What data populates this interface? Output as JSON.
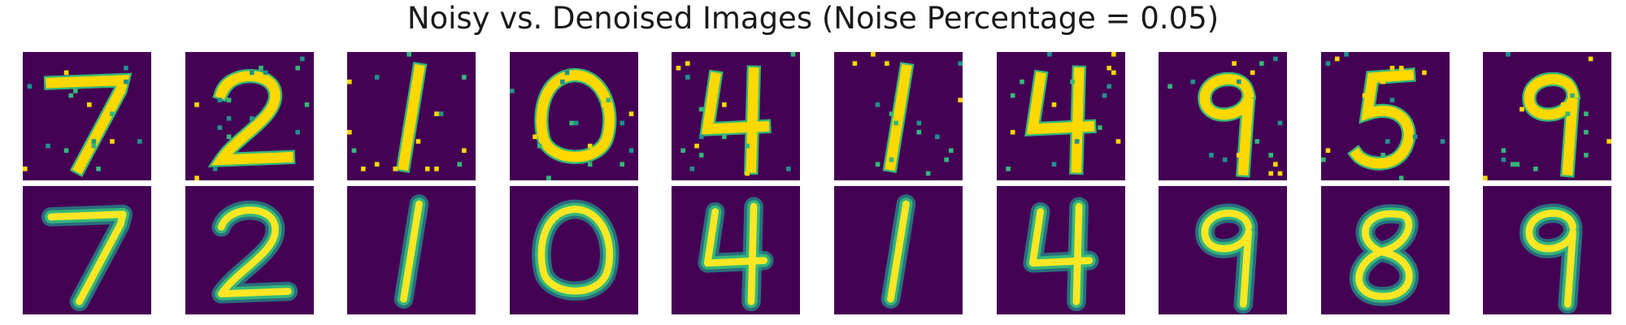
{
  "figure": {
    "title": "Noisy vs. Denoised Images (Noise Percentage = 0.05)",
    "colormap": {
      "background": "#440154",
      "mid": "#21918c",
      "teal": "#35b779",
      "high": "#fde725",
      "bright": "#ffd800"
    }
  },
  "rows": [
    {
      "kind": "noisy",
      "digits": [
        "7",
        "2",
        "1",
        "0",
        "4",
        "1",
        "4",
        "9",
        "5",
        "9"
      ]
    },
    {
      "kind": "denoised",
      "digits": [
        "7",
        "2",
        "1",
        "0",
        "4",
        "1",
        "4",
        "9",
        "8",
        "9"
      ]
    }
  ]
}
